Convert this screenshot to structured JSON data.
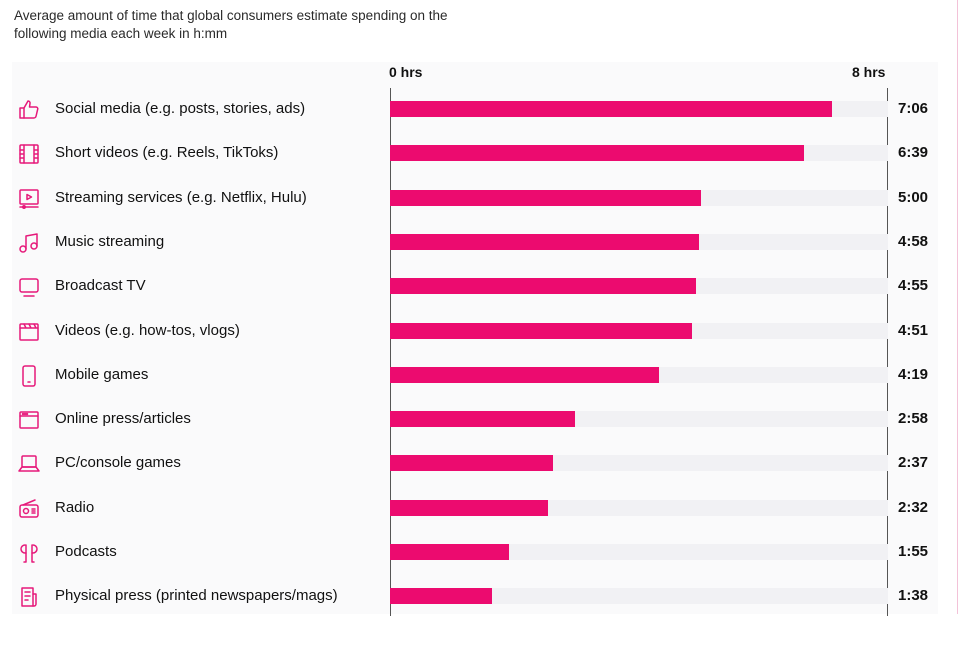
{
  "subtitle": "Average amount of time that global consumers estimate spending on the following media each week in h:mm",
  "chart_data": {
    "type": "bar",
    "orientation": "horizontal",
    "title": "Average amount of time that global consumers estimate spending on the following media each week in h:mm",
    "xlim_hours": [
      0,
      8
    ],
    "axis_labels": {
      "min": "0 hrs",
      "max": "8 hrs"
    },
    "bar_color": "#ec0b6f",
    "track_color": "#f1f1f4",
    "categories": [
      {
        "label": "Social media (e.g. posts, stories, ads)",
        "value_text": "7:06",
        "hours": 7.1,
        "icon": "thumbs-up-icon"
      },
      {
        "label": "Short videos (e.g. Reels, TikToks)",
        "value_text": "6:39",
        "hours": 6.65,
        "icon": "film-strip-icon"
      },
      {
        "label": "Streaming services (e.g. Netflix, Hulu)",
        "value_text": "5:00",
        "hours": 5.0,
        "icon": "play-screen-icon"
      },
      {
        "label": "Music streaming",
        "value_text": "4:58",
        "hours": 4.967,
        "icon": "music-note-icon"
      },
      {
        "label": "Broadcast TV",
        "value_text": "4:55",
        "hours": 4.917,
        "icon": "tv-icon"
      },
      {
        "label": "Videos (e.g. how-tos, vlogs)",
        "value_text": "4:51",
        "hours": 4.85,
        "icon": "video-clapper-icon"
      },
      {
        "label": "Mobile games",
        "value_text": "4:19",
        "hours": 4.317,
        "icon": "mobile-phone-icon"
      },
      {
        "label": "Online press/articles",
        "value_text": "2:58",
        "hours": 2.967,
        "icon": "browser-window-icon"
      },
      {
        "label": "PC/console games",
        "value_text": "2:37",
        "hours": 2.617,
        "icon": "laptop-icon"
      },
      {
        "label": "Radio",
        "value_text": "2:32",
        "hours": 2.533,
        "icon": "radio-icon"
      },
      {
        "label": "Podcasts",
        "value_text": "1:55",
        "hours": 1.917,
        "icon": "earbuds-icon"
      },
      {
        "label": "Physical press (printed newspapers/mags)",
        "value_text": "1:38",
        "hours": 1.633,
        "icon": "newspaper-icon"
      }
    ]
  }
}
